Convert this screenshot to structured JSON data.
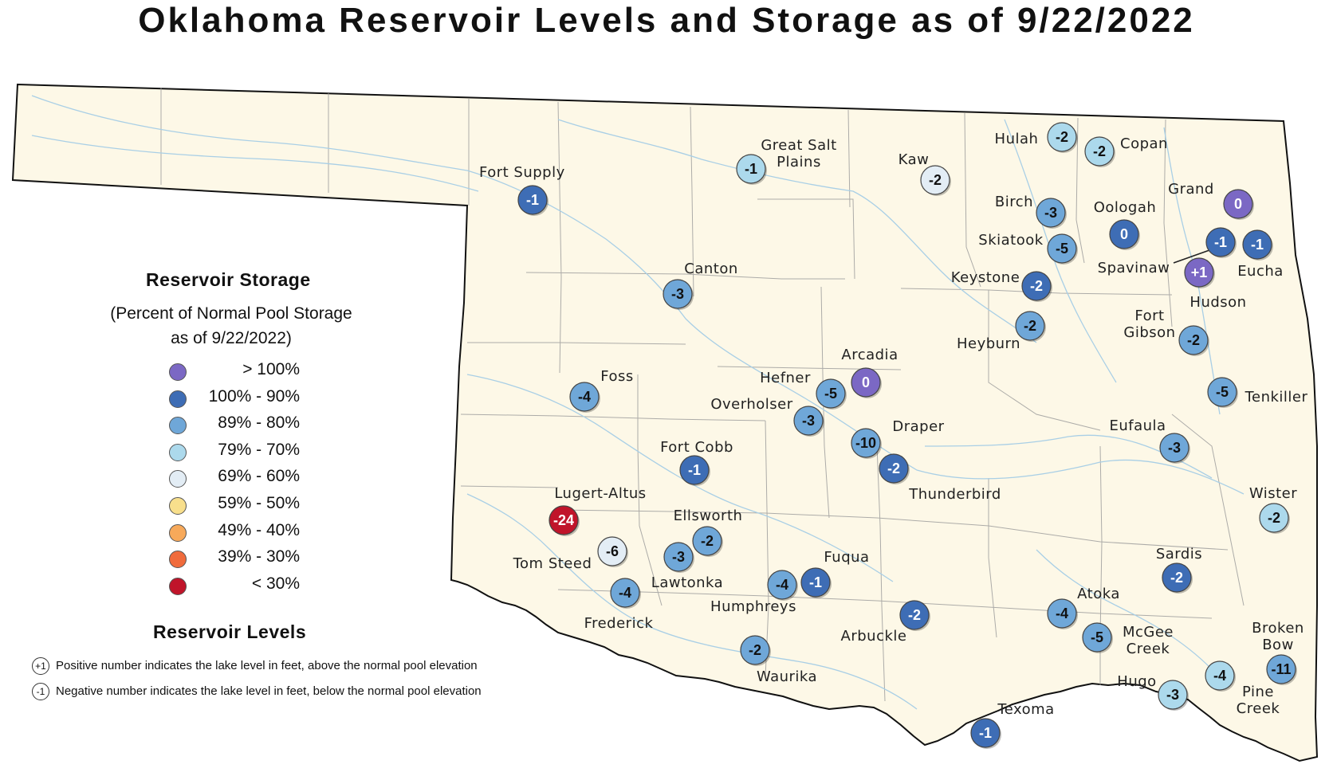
{
  "title": "Oklahoma Reservoir Levels and Storage as of 9/22/2022",
  "legend": {
    "storage_title": "Reservoir Storage",
    "storage_subtitle_line1": "(Percent of Normal Pool Storage",
    "storage_subtitle_line2": "as of 9/22/2022)",
    "classes": [
      {
        "label": "> 100%",
        "color": "#7b68c4"
      },
      {
        "label": "100% - 90%",
        "color": "#3e6db5"
      },
      {
        "label": "89% - 80%",
        "color": "#6fa7d8"
      },
      {
        "label": "79% - 70%",
        "color": "#acd9ec"
      },
      {
        "label": "69% - 60%",
        "color": "#e3edf5"
      },
      {
        "label": "59% - 50%",
        "color": "#f8df8c"
      },
      {
        "label": "49% - 40%",
        "color": "#f7a95a"
      },
      {
        "label": "39% - 30%",
        "color": "#f06b3c"
      },
      {
        "label": "< 30%",
        "color": "#c0142a"
      }
    ],
    "levels_title": "Reservoir Levels",
    "positive_badge": "+1",
    "positive_note": "Positive number indicates the lake level in feet, above the normal pool elevation",
    "negative_badge": "-1",
    "negative_note": "Negative number indicates the lake level in feet, below the normal pool elevation"
  },
  "reservoirs": [
    {
      "name": "Fort Supply",
      "level": "-1",
      "class": 1
    },
    {
      "name": "Great Salt Plains",
      "level": "-1",
      "class": 3
    },
    {
      "name": "Kaw",
      "level": "-2",
      "class": 4
    },
    {
      "name": "Hulah",
      "level": "-2",
      "class": 3
    },
    {
      "name": "Copan",
      "level": "-2",
      "class": 3
    },
    {
      "name": "Birch",
      "level": "-3",
      "class": 2
    },
    {
      "name": "Oologah",
      "level": "0",
      "class": 1
    },
    {
      "name": "Grand",
      "level": "0",
      "class": 0
    },
    {
      "name": "Skiatook",
      "level": "-5",
      "class": 2
    },
    {
      "name": "Spavinaw",
      "level": "-1",
      "class": 1
    },
    {
      "name": "Eucha",
      "level": "-1",
      "class": 1
    },
    {
      "name": "Hudson",
      "level": "+1",
      "class": 0
    },
    {
      "name": "Keystone",
      "level": "-2",
      "class": 1
    },
    {
      "name": "Canton",
      "level": "-3",
      "class": 2
    },
    {
      "name": "Heyburn",
      "level": "-2",
      "class": 2
    },
    {
      "name": "Fort Gibson",
      "level": "-2",
      "class": 2
    },
    {
      "name": "Arcadia",
      "level": "0",
      "class": 0
    },
    {
      "name": "Hefner",
      "level": "-5",
      "class": 2
    },
    {
      "name": "Foss",
      "level": "-4",
      "class": 2
    },
    {
      "name": "Overholser",
      "level": "-3",
      "class": 2
    },
    {
      "name": "Tenkiller",
      "level": "-5",
      "class": 2
    },
    {
      "name": "Draper",
      "level": "-10",
      "class": 2
    },
    {
      "name": "Eufaula",
      "level": "-3",
      "class": 2
    },
    {
      "name": "Fort Cobb",
      "level": "-1",
      "class": 1
    },
    {
      "name": "Thunderbird",
      "level": "-2",
      "class": 1
    },
    {
      "name": "Lugert-Altus",
      "level": "-24",
      "class": 8
    },
    {
      "name": "Wister",
      "level": "-2",
      "class": 3
    },
    {
      "name": "Ellsworth",
      "level": "-2",
      "class": 2
    },
    {
      "name": "Tom Steed",
      "level": "-6",
      "class": 4
    },
    {
      "name": "Lawtonka",
      "level": "-3",
      "class": 2
    },
    {
      "name": "Fuqua",
      "level": "-1",
      "class": 1
    },
    {
      "name": "Humphreys",
      "level": "-4",
      "class": 2
    },
    {
      "name": "Sardis",
      "level": "-2",
      "class": 1
    },
    {
      "name": "Frederick",
      "level": "-4",
      "class": 2
    },
    {
      "name": "Arbuckle",
      "level": "-2",
      "class": 1
    },
    {
      "name": "Atoka",
      "level": "-4",
      "class": 2
    },
    {
      "name": "McGee Creek",
      "level": "-5",
      "class": 2
    },
    {
      "name": "Waurika",
      "level": "-2",
      "class": 2
    },
    {
      "name": "Broken Bow",
      "level": "-11",
      "class": 2
    },
    {
      "name": "Hugo",
      "level": "-3",
      "class": 3
    },
    {
      "name": "Pine Creek",
      "level": "-4",
      "class": 3
    },
    {
      "name": "Texoma",
      "level": "-1",
      "class": 1
    }
  ]
}
